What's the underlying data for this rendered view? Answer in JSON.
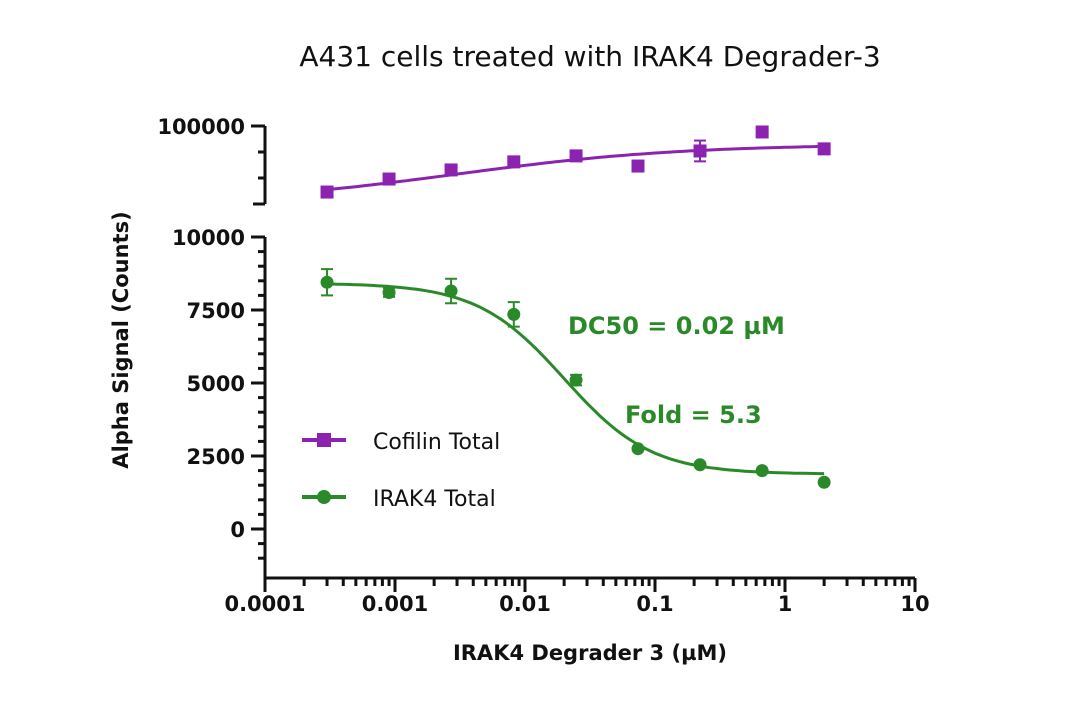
{
  "chart_data": {
    "type": "scatter",
    "title": "A431 cells treated with IRAK4 Degrader-3",
    "xlabel": "IRAK4 Degrader 3 (µM)",
    "ylabel": "Alpha Signal (Counts)",
    "xscale": "log",
    "xlim": [
      0.0001,
      10
    ],
    "xticks": [
      "0.0001",
      "0.001",
      "0.01",
      "0.1",
      "1",
      "10"
    ],
    "ylim_lower": [
      -1000,
      10000
    ],
    "yticks_lower": [
      "0",
      "2500",
      "5000",
      "7500",
      "10000"
    ],
    "ylim_upper": [
      68000,
      100000
    ],
    "yticks_upper": [
      "100000"
    ],
    "axis_break": true,
    "grid": false,
    "legend_placement": "lower-left inside",
    "annotations": [
      "DC50 = 0.02 µM",
      "Fold = 5.3"
    ],
    "x": [
      0.0003,
      0.0009,
      0.0027,
      0.0082,
      0.0247,
      0.074,
      0.222,
      0.667,
      2
    ],
    "series": [
      {
        "name": "Cofilin Total",
        "color": "#8b23b0",
        "marker": "square",
        "panel": "upper",
        "values": [
          74600,
          79600,
          83100,
          86200,
          88500,
          84600,
          90400,
          97700,
          91200
        ],
        "errors": [
          0,
          0,
          0,
          0,
          0,
          0,
          4000,
          0,
          0
        ],
        "fit": {
          "bottom": 70000,
          "top": 93000,
          "ec50": 0.003,
          "hill": 0.5
        }
      },
      {
        "name": "IRAK4 Total",
        "color": "#2a8a2a",
        "marker": "circle",
        "panel": "lower",
        "values": [
          8450,
          8100,
          8150,
          7350,
          5100,
          2750,
          2200,
          2000,
          1600
        ],
        "errors": [
          450,
          150,
          420,
          420,
          180,
          0,
          0,
          0,
          0
        ],
        "fit": {
          "bottom": 1880,
          "top": 8420,
          "ec50": 0.02,
          "hill": -1.3
        }
      }
    ]
  }
}
